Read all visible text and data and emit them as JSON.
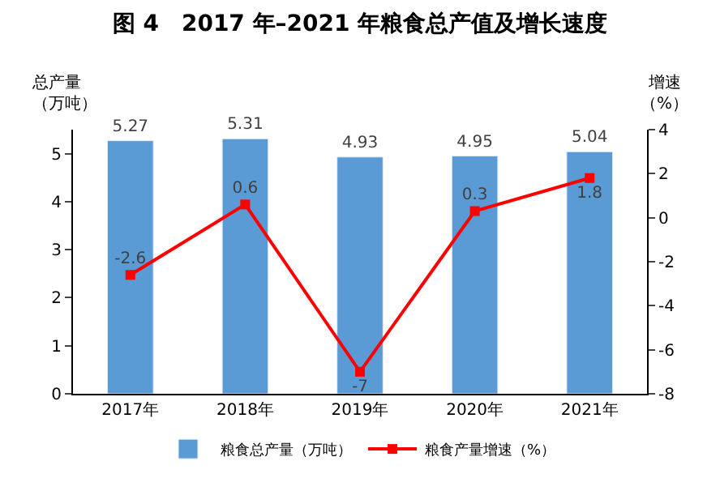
{
  "chart_data": {
    "type": "bar",
    "title": "图 4　2017 年–2021 年粮食总产值及增长速度",
    "ylabel": "总产量（万吨）",
    "y2label": "增速（%）",
    "categories": [
      "2017年",
      "2018年",
      "2019年",
      "2020年",
      "2021年"
    ],
    "series": [
      {
        "name": "粮食总产量（万吨）",
        "color": "#5b9bd5",
        "values": [
          5.27,
          5.31,
          4.93,
          4.95,
          5.04
        ]
      },
      {
        "name": "粮食产量增速（%）",
        "type": "line",
        "axis": "y2",
        "color": "#ff0000",
        "marker": "square",
        "values": [
          -2.6,
          0.6,
          -7,
          0.3,
          1.8
        ]
      }
    ],
    "ylim": [
      0,
      5.5
    ],
    "yticks": [
      0,
      1,
      2,
      3,
      4,
      5
    ],
    "y2lim": [
      -8,
      4
    ],
    "y2ticks": [
      -8,
      -6,
      -4,
      -2,
      0,
      2,
      4
    ],
    "data_labels": true,
    "legend": "bottom"
  }
}
